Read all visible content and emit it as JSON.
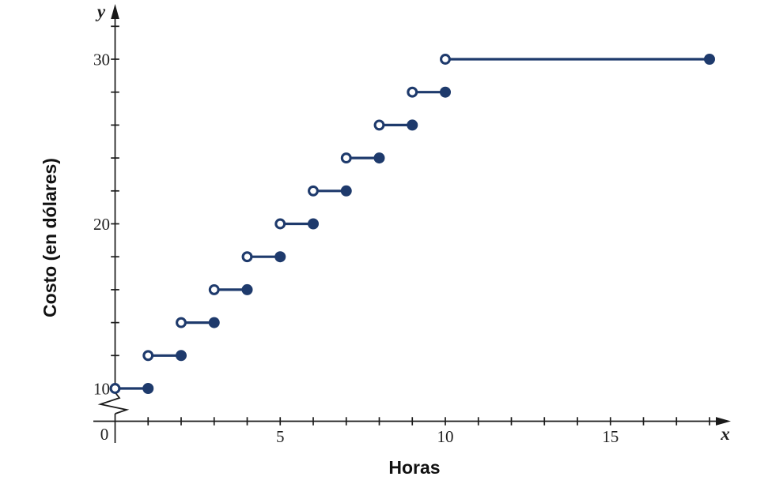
{
  "figure": {
    "background": "#ffffff",
    "series_color": "#1e3a6c",
    "axis_color": "#1a1a1a",
    "tick_label_color": "#1f1f1f"
  },
  "chart_data": {
    "type": "line",
    "subtype": "step-function",
    "title": "",
    "xlabel": "Horas",
    "ylabel": "Costo (en dólares)",
    "x_axis_letter": "x",
    "y_axis_letter": "y",
    "origin_label": "0",
    "xlim": [
      0,
      18.6
    ],
    "ylim_shown": [
      10,
      32
    ],
    "y_axis_break_below": 10,
    "grid": false,
    "legend": "none",
    "x_minor_ticks": [
      1,
      2,
      3,
      4,
      5,
      6,
      7,
      8,
      9,
      10,
      11,
      12,
      13,
      14,
      15,
      16,
      17,
      18
    ],
    "x_labeled_ticks": [
      5,
      10,
      15
    ],
    "y_minor_ticks": [
      10,
      12,
      14,
      16,
      18,
      20,
      22,
      24,
      26,
      28,
      30,
      32
    ],
    "y_labeled_ticks": [
      10,
      20,
      30
    ],
    "marker_convention": {
      "start": "open-circle",
      "end": "filled-circle"
    },
    "segments": [
      {
        "x_start": 0,
        "x_end": 1,
        "y": 10,
        "start": "open",
        "end": "closed"
      },
      {
        "x_start": 1,
        "x_end": 2,
        "y": 12,
        "start": "open",
        "end": "closed"
      },
      {
        "x_start": 2,
        "x_end": 3,
        "y": 14,
        "start": "open",
        "end": "closed"
      },
      {
        "x_start": 3,
        "x_end": 4,
        "y": 16,
        "start": "open",
        "end": "closed"
      },
      {
        "x_start": 4,
        "x_end": 5,
        "y": 18,
        "start": "open",
        "end": "closed"
      },
      {
        "x_start": 5,
        "x_end": 6,
        "y": 20,
        "start": "open",
        "end": "closed"
      },
      {
        "x_start": 6,
        "x_end": 7,
        "y": 22,
        "start": "open",
        "end": "closed"
      },
      {
        "x_start": 7,
        "x_end": 8,
        "y": 24,
        "start": "open",
        "end": "closed"
      },
      {
        "x_start": 8,
        "x_end": 9,
        "y": 26,
        "start": "open",
        "end": "closed"
      },
      {
        "x_start": 9,
        "x_end": 10,
        "y": 28,
        "start": "open",
        "end": "closed"
      },
      {
        "x_start": 10,
        "x_end": 18,
        "y": 30,
        "start": "open",
        "end": "closed"
      }
    ]
  }
}
